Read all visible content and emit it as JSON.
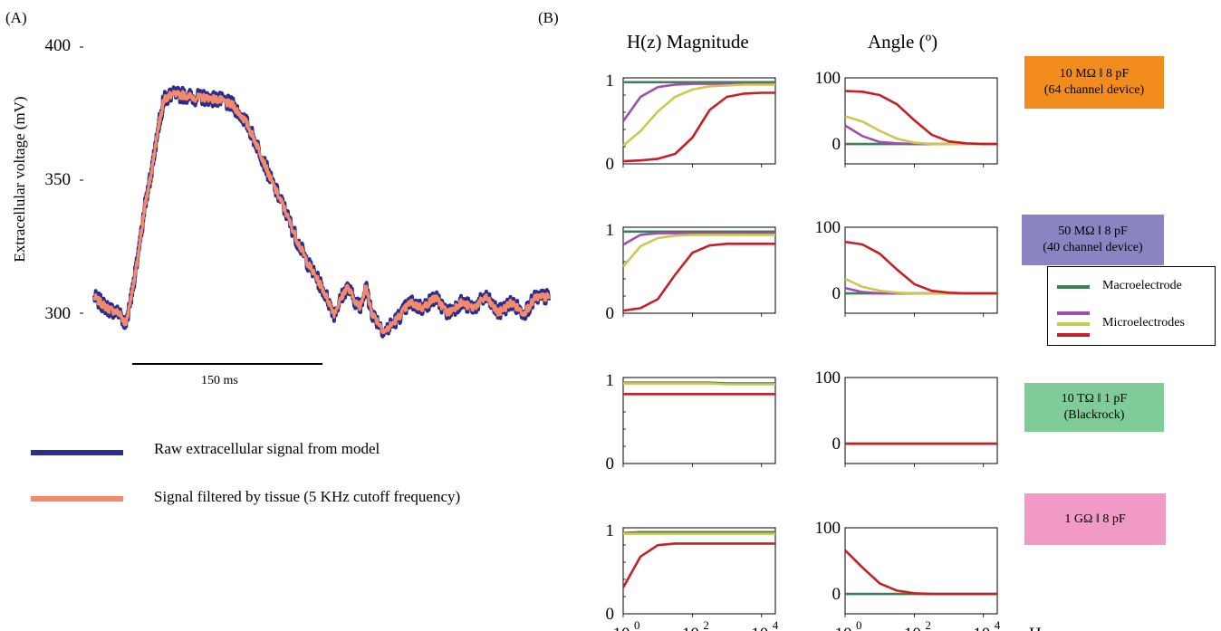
{
  "panel_labels": [
    "(A)",
    "(B)"
  ],
  "panel_a": {
    "ylabel": "Extracellular voltage (mV)",
    "yticks": [
      "400",
      "350",
      "300"
    ],
    "scalebar_label": "150 ms",
    "legend": [
      {
        "label": "Raw extracellular signal from model",
        "color": "#2b2d8e"
      },
      {
        "label": "Signal filtered by tissue (5 KHz cutoff frequency)",
        "color": "#f48a6a"
      }
    ]
  },
  "panel_b": {
    "col_titles": [
      "H(z) Magnitude",
      "Angle  (º)"
    ],
    "mag_yticks": [
      "1",
      "0"
    ],
    "angle_yticks": [
      "100",
      "0"
    ],
    "xticks": [
      "10",
      "10",
      "10"
    ],
    "xtick_exps": [
      "0",
      "2",
      "4"
    ],
    "xunit": "Hz",
    "impedances": [
      {
        "line1": "10 MΩ ǁ 8 pF",
        "line2": "(64 channel device)",
        "color": "#f28c1c"
      },
      {
        "line1": "50 MΩ ǁ 8 pF",
        "line2": "(40 channel device)",
        "color": "#8b84c2"
      },
      {
        "line1": "10 TΩ ǁ 1 pF",
        "line2": "(Blackrock)",
        "color": "#7fcc98"
      },
      {
        "line1": "1 GΩ ǁ 8 pF",
        "line2": "",
        "color": "#f19ac6"
      }
    ],
    "legend": {
      "macro_label": "Macroelectrode",
      "micro_label": "Microelectrodes",
      "colors": {
        "macro": "#3f7f57",
        "purple": "#9b4fb0",
        "yellow": "#cfc650",
        "red": "#c42025"
      }
    }
  },
  "chart_data": [
    {
      "type": "line",
      "title": "",
      "ylabel": "Extracellular voltage (mV)",
      "xlabel": "",
      "ylim": [
        290,
        400
      ],
      "xlim_ms": [
        0,
        360
      ],
      "series": [
        {
          "name": "Raw extracellular signal from model",
          "x": [
            0,
            10,
            20,
            25,
            30,
            35,
            40,
            45,
            50,
            55,
            60,
            70,
            80,
            90,
            100,
            110,
            120,
            130,
            140,
            150,
            160,
            170,
            180,
            190,
            200,
            210,
            215,
            220,
            230,
            240,
            250,
            260,
            270,
            280,
            290,
            300,
            310,
            320,
            330,
            340,
            350,
            360
          ],
          "y": [
            306,
            302,
            300,
            296,
            308,
            322,
            340,
            352,
            368,
            380,
            382,
            382,
            381,
            381,
            380,
            378,
            372,
            362,
            350,
            340,
            328,
            318,
            310,
            300,
            310,
            302,
            310,
            300,
            293,
            298,
            304,
            302,
            306,
            300,
            304,
            302,
            306,
            300,
            304,
            300,
            306,
            306
          ]
        },
        {
          "name": "Signal filtered by tissue (5 KHz cutoff frequency)",
          "x": [
            0,
            10,
            20,
            25,
            30,
            35,
            40,
            45,
            50,
            55,
            60,
            70,
            80,
            90,
            100,
            110,
            120,
            130,
            140,
            150,
            160,
            170,
            180,
            190,
            200,
            210,
            215,
            220,
            230,
            240,
            250,
            260,
            270,
            280,
            290,
            300,
            310,
            320,
            330,
            340,
            350,
            360
          ],
          "y": [
            306,
            302,
            300,
            296,
            308,
            322,
            340,
            352,
            368,
            380,
            382,
            382,
            381,
            381,
            380,
            378,
            372,
            362,
            350,
            340,
            328,
            318,
            310,
            300,
            310,
            302,
            310,
            300,
            293,
            298,
            304,
            302,
            306,
            300,
            304,
            302,
            306,
            300,
            304,
            300,
            306,
            306
          ]
        }
      ]
    },
    {
      "type": "line",
      "title": "10 MΩ ǁ 8 pF (64 channel device)",
      "x_log10": [
        0,
        0.5,
        1,
        1.5,
        2,
        2.5,
        3,
        3.5,
        4,
        4.4
      ],
      "magnitude": {
        "ylim": [
          0,
          1
        ],
        "series": [
          {
            "color": "macro",
            "values": [
              0.98,
              0.98,
              0.98,
              0.98,
              0.98,
              0.98,
              0.98,
              0.98,
              0.98,
              0.98
            ]
          },
          {
            "color": "purple",
            "values": [
              0.5,
              0.8,
              0.92,
              0.95,
              0.96,
              0.96,
              0.96,
              0.96,
              0.96,
              0.96
            ]
          },
          {
            "color": "yellow",
            "values": [
              0.2,
              0.38,
              0.62,
              0.8,
              0.89,
              0.93,
              0.94,
              0.95,
              0.95,
              0.95
            ]
          },
          {
            "color": "red",
            "values": [
              0.01,
              0.02,
              0.04,
              0.1,
              0.3,
              0.64,
              0.8,
              0.84,
              0.85,
              0.85
            ]
          }
        ]
      },
      "angle": {
        "ylim": [
          -30,
          100
        ],
        "series": [
          {
            "color": "macro",
            "values": [
              0,
              0,
              0,
              0,
              0,
              0,
              0,
              0,
              0,
              0
            ]
          },
          {
            "color": "purple",
            "values": [
              28,
              12,
              3,
              1,
              0,
              0,
              0,
              0,
              0,
              0
            ]
          },
          {
            "color": "yellow",
            "values": [
              42,
              34,
              20,
              8,
              2,
              0,
              0,
              0,
              0,
              0
            ]
          },
          {
            "color": "red",
            "values": [
              80,
              79,
              74,
              60,
              36,
              14,
              4,
              1,
              0,
              0
            ]
          }
        ]
      }
    },
    {
      "type": "line",
      "title": "50 MΩ ǁ 8 pF (40 channel device)",
      "x_log10": [
        0,
        0.5,
        1,
        1.5,
        2,
        2.5,
        3,
        3.5,
        4,
        4.4
      ],
      "magnitude": {
        "ylim": [
          0,
          1
        ],
        "series": [
          {
            "color": "macro",
            "values": [
              0.98,
              0.98,
              0.98,
              0.98,
              0.98,
              0.98,
              0.98,
              0.98,
              0.98,
              0.98
            ]
          },
          {
            "color": "purple",
            "values": [
              0.82,
              0.94,
              0.96,
              0.96,
              0.96,
              0.96,
              0.96,
              0.96,
              0.96,
              0.96
            ]
          },
          {
            "color": "yellow",
            "values": [
              0.55,
              0.8,
              0.9,
              0.93,
              0.94,
              0.94,
              0.94,
              0.94,
              0.94,
              0.94
            ]
          },
          {
            "color": "red",
            "values": [
              0.01,
              0.04,
              0.15,
              0.45,
              0.72,
              0.81,
              0.83,
              0.83,
              0.83,
              0.83
            ]
          }
        ]
      },
      "angle": {
        "ylim": [
          -30,
          100
        ],
        "series": [
          {
            "color": "macro",
            "values": [
              0,
              0,
              0,
              0,
              0,
              0,
              0,
              0,
              0,
              0
            ]
          },
          {
            "color": "purple",
            "values": [
              8,
              2,
              0,
              0,
              0,
              0,
              0,
              0,
              0,
              0
            ]
          },
          {
            "color": "yellow",
            "values": [
              22,
              10,
              4,
              1,
              0,
              0,
              0,
              0,
              0,
              0
            ]
          },
          {
            "color": "red",
            "values": [
              78,
              74,
              60,
              36,
              14,
              4,
              1,
              0,
              0,
              0
            ]
          }
        ]
      }
    },
    {
      "type": "line",
      "title": "10 TΩ ǁ 1 pF (Blackrock)",
      "x_log10": [
        0,
        0.5,
        1,
        1.5,
        2,
        2.5,
        3,
        3.5,
        4,
        4.4
      ],
      "magnitude": {
        "ylim": [
          0,
          1
        ],
        "series": [
          {
            "color": "macro",
            "values": [
              0.97,
              0.97,
              0.97,
              0.97,
              0.97,
              0.97,
              0.96,
              0.96,
              0.96,
              0.96
            ]
          },
          {
            "color": "yellow",
            "values": [
              0.96,
              0.96,
              0.96,
              0.96,
              0.96,
              0.96,
              0.95,
              0.95,
              0.95,
              0.95
            ]
          },
          {
            "color": "red",
            "values": [
              0.83,
              0.83,
              0.83,
              0.83,
              0.83,
              0.83,
              0.83,
              0.83,
              0.83,
              0.83
            ]
          }
        ]
      },
      "angle": {
        "ylim": [
          -30,
          100
        ],
        "series": [
          {
            "color": "macro",
            "values": [
              0,
              0,
              0,
              0,
              0,
              0,
              0,
              0,
              0,
              0
            ]
          },
          {
            "color": "red",
            "values": [
              0,
              0,
              0,
              0,
              0,
              0,
              0,
              0,
              0,
              0
            ]
          }
        ]
      }
    },
    {
      "type": "line",
      "title": "1 GΩ ǁ 8 pF",
      "x_log10": [
        0,
        0.5,
        1,
        1.5,
        2,
        2.5,
        3,
        3.5,
        4,
        4.4
      ],
      "magnitude": {
        "ylim": [
          0,
          1
        ],
        "series": [
          {
            "color": "macro",
            "values": [
              0.97,
              0.98,
              0.98,
              0.98,
              0.98,
              0.98,
              0.98,
              0.98,
              0.98,
              0.98
            ]
          },
          {
            "color": "yellow",
            "values": [
              0.96,
              0.96,
              0.96,
              0.96,
              0.96,
              0.96,
              0.96,
              0.96,
              0.96,
              0.96
            ]
          },
          {
            "color": "red",
            "values": [
              0.3,
              0.68,
              0.82,
              0.84,
              0.84,
              0.84,
              0.84,
              0.84,
              0.84,
              0.84
            ]
          }
        ]
      },
      "angle": {
        "ylim": [
          -30,
          100
        ],
        "series": [
          {
            "color": "macro",
            "values": [
              0,
              0,
              0,
              0,
              0,
              0,
              0,
              0,
              0,
              0
            ]
          },
          {
            "color": "red",
            "values": [
              66,
              40,
              16,
              5,
              1,
              0,
              0,
              0,
              0,
              0
            ]
          }
        ]
      }
    }
  ]
}
